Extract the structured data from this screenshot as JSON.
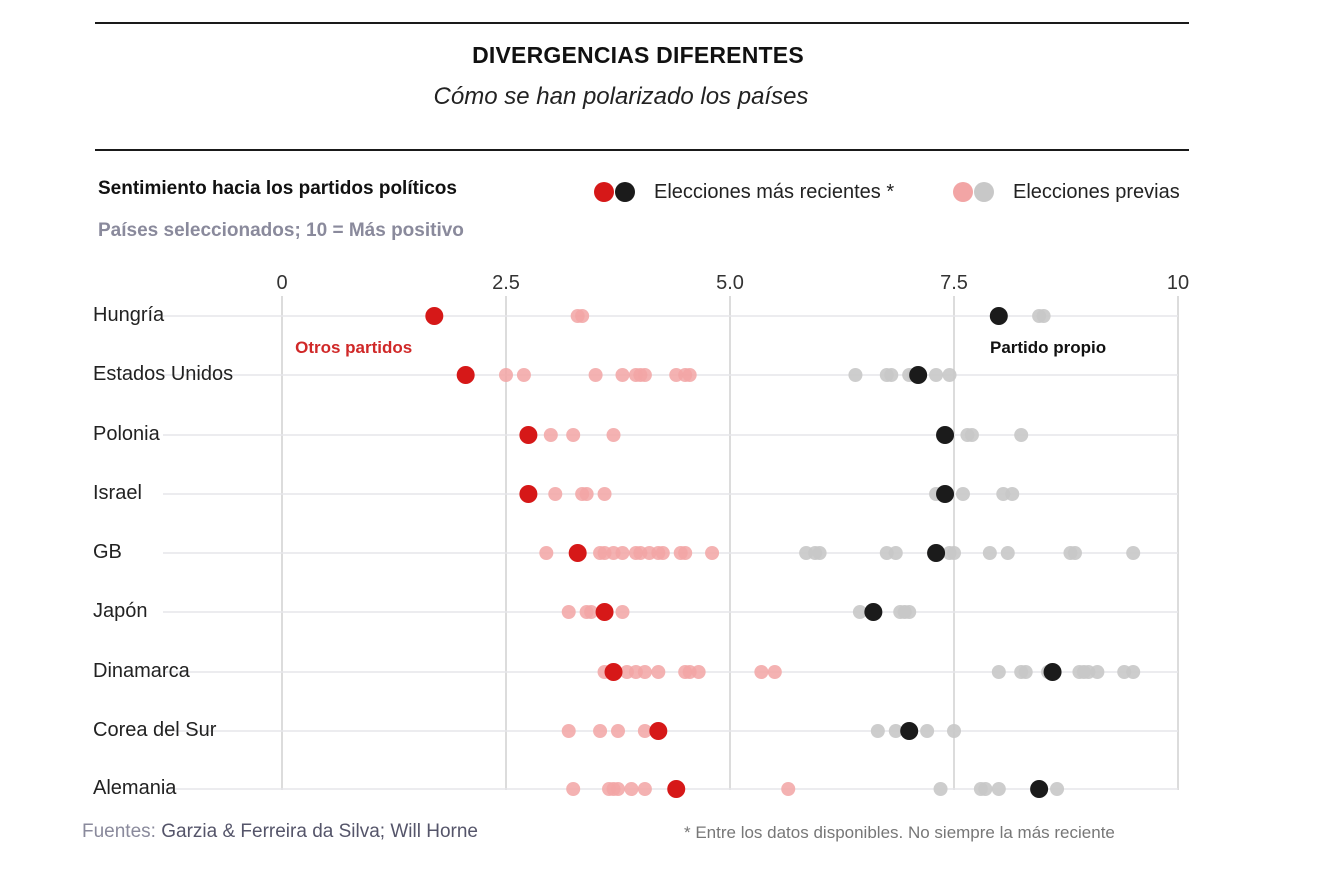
{
  "title": "DIVERGENCIAS DIFERENTES",
  "subtitle": "Cómo se han polarizado los países",
  "panel_title": "Sentimiento hacia los partidos políticos",
  "panel_subtitle": "Países seleccionados; 10 = Más positivo",
  "legend": {
    "recent_label": "Elecciones más recientes *",
    "previous_label": "Elecciones previas"
  },
  "colors": {
    "other_recent": "#d61818",
    "own_recent": "#1b1b1b",
    "other_previous": "#f2a5a5",
    "own_previous": "#c8c8c8",
    "gridline": "#d0d0d0",
    "rowline": "#e6e6ea",
    "other_label": "#d02828",
    "own_label": "#111111"
  },
  "footer": {
    "sources_prefix": "Fuentes:",
    "sources_text": "Garzia & Ferreira da Silva; Will Horne",
    "note": "* Entre los datos disponibles. No siempre la más reciente"
  },
  "chart_data": {
    "type": "scatter",
    "title": "Sentimiento hacia los partidos políticos",
    "subtitle": "Países seleccionados; 10 = Más positivo",
    "xlim": [
      0,
      10
    ],
    "x_ticks": [
      {
        "value": 0,
        "label": "0"
      },
      {
        "value": 2.5,
        "label": "2.5"
      },
      {
        "value": 5,
        "label": "5.0"
      },
      {
        "value": 7.5,
        "label": "7.5"
      },
      {
        "value": 10,
        "label": "10"
      }
    ],
    "grid": true,
    "legend_position": "top-right",
    "annotations": [
      {
        "text": "Otros partidos",
        "x": 0.8,
        "row": "Hungría"
      },
      {
        "text": "Partido propio",
        "x": 8.55,
        "row": "Hungría"
      }
    ],
    "series_names": [
      "Otros partidos",
      "Partido propio"
    ],
    "rows": [
      {
        "country": "Hungría",
        "other_recent": 1.7,
        "other_previous": [
          3.3,
          3.35
        ],
        "own_recent": 8.0,
        "own_previous": [
          8.45,
          8.5
        ]
      },
      {
        "country": "Estados Unidos",
        "other_recent": 2.05,
        "other_previous": [
          2.5,
          2.7,
          3.5,
          3.8,
          3.95,
          4.0,
          4.05,
          4.4,
          4.5,
          4.55
        ],
        "own_recent": 7.1,
        "own_previous": [
          6.4,
          6.75,
          6.8,
          7.0,
          7.05,
          7.3,
          7.45
        ]
      },
      {
        "country": "Polonia",
        "other_recent": 2.75,
        "other_previous": [
          3.0,
          3.25,
          3.7
        ],
        "own_recent": 7.4,
        "own_previous": [
          7.65,
          7.7,
          8.25
        ]
      },
      {
        "country": "Israel",
        "other_recent": 2.75,
        "other_previous": [
          3.05,
          3.35,
          3.4,
          3.6
        ],
        "own_recent": 7.4,
        "own_previous": [
          7.3,
          7.6,
          8.05,
          8.15
        ]
      },
      {
        "country": "GB",
        "other_recent": 3.3,
        "other_previous": [
          2.95,
          3.55,
          3.6,
          3.7,
          3.8,
          3.95,
          4.0,
          4.1,
          4.2,
          4.25,
          4.45,
          4.5,
          4.8
        ],
        "own_recent": 7.3,
        "own_previous": [
          5.85,
          5.95,
          6.0,
          6.75,
          6.85,
          7.45,
          7.5,
          7.9,
          8.1,
          8.8,
          8.85,
          9.5
        ]
      },
      {
        "country": "Japón",
        "other_recent": 3.6,
        "other_previous": [
          3.2,
          3.4,
          3.45,
          3.8
        ],
        "own_recent": 6.6,
        "own_previous": [
          6.45,
          6.9,
          6.95,
          7.0
        ]
      },
      {
        "country": "Dinamarca",
        "other_recent": 3.7,
        "other_previous": [
          3.6,
          3.85,
          3.95,
          4.05,
          4.2,
          4.5,
          4.55,
          4.65,
          5.35,
          5.5
        ],
        "own_recent": 8.6,
        "own_previous": [
          8.0,
          8.25,
          8.3,
          8.55,
          8.9,
          8.95,
          9.0,
          9.1,
          9.4,
          9.5
        ]
      },
      {
        "country": "Corea del Sur",
        "other_recent": 4.2,
        "other_previous": [
          3.2,
          3.55,
          3.75,
          4.05
        ],
        "own_recent": 7.0,
        "own_previous": [
          6.65,
          6.85,
          7.2,
          7.5
        ]
      },
      {
        "country": "Alemania",
        "other_recent": 4.4,
        "other_previous": [
          3.25,
          3.65,
          3.7,
          3.75,
          3.9,
          4.05,
          5.65
        ],
        "own_recent": 8.45,
        "own_previous": [
          7.35,
          7.8,
          7.85,
          8.0,
          8.65
        ]
      }
    ]
  }
}
